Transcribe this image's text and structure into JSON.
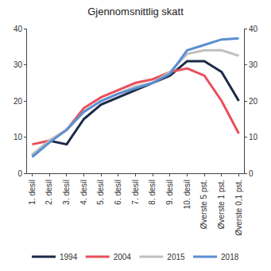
{
  "chart_data": {
    "type": "line",
    "title": "Gjennomsnittlig skatt",
    "categories": [
      "1. desil",
      "2. desil",
      "3. desil",
      "4. desil",
      "5. desil",
      "6. desil",
      "7. desil",
      "8. desil",
      "9. desil",
      "10. desil",
      "Øverste 5 pst.",
      "Øverste 1 pst.",
      "Øverste 0,1 pst."
    ],
    "series": [
      {
        "name": "1994",
        "color": "#1c2a48",
        "values": [
          5,
          9,
          8,
          15,
          19,
          21,
          23,
          25,
          27,
          31,
          31,
          28,
          20
        ]
      },
      {
        "name": "2004",
        "color": "#e8505b",
        "values": [
          8,
          9,
          12,
          18,
          21,
          23,
          25,
          26,
          28,
          29,
          27,
          20,
          11
        ]
      },
      {
        "name": "2015",
        "color": "#c0c0c0",
        "values": [
          5,
          9,
          12,
          17,
          20,
          22,
          24,
          25,
          28,
          33,
          34,
          34,
          32.5
        ]
      },
      {
        "name": "2018",
        "color": "#5b8fd0",
        "values": [
          4.5,
          8.5,
          12,
          17,
          20,
          22,
          23.5,
          25,
          27.5,
          34,
          35.5,
          37,
          37.3
        ]
      }
    ],
    "ylim": [
      0,
      40
    ],
    "yticks": [
      0,
      10,
      20,
      30,
      40
    ],
    "y2lim": [
      0,
      40
    ],
    "y2ticks": [
      0,
      10,
      20,
      30,
      40
    ],
    "grid": false,
    "legend": "bottom"
  }
}
